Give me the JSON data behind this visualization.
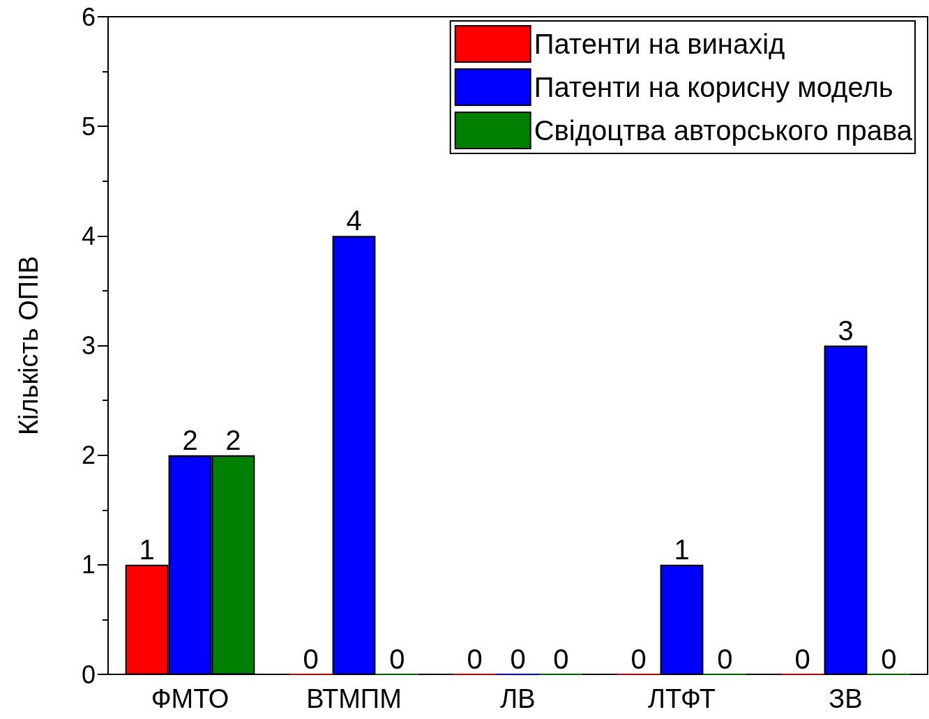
{
  "chart_data": {
    "type": "bar",
    "ylabel": "Кількість ОПІВ",
    "categories": [
      "ФМТО",
      "ВТМПМ",
      "ЛВ",
      "ЛТФТ",
      "ЗВ"
    ],
    "series": [
      {
        "name": "Патенти на винахід",
        "color": "#ff0000",
        "values": [
          1,
          0,
          0,
          0,
          0
        ]
      },
      {
        "name": "Патенти на корисну модель",
        "color": "#0000ff",
        "values": [
          2,
          4,
          0,
          1,
          3
        ]
      },
      {
        "name": "Свідоцтва авторського права",
        "color": "#008000",
        "values": [
          2,
          0,
          0,
          0,
          0
        ]
      }
    ],
    "ylim": [
      0,
      6
    ],
    "yticks": [
      0,
      1,
      2,
      3,
      4,
      5,
      6
    ],
    "data_labels": true,
    "legend": "top right",
    "grid": false
  }
}
